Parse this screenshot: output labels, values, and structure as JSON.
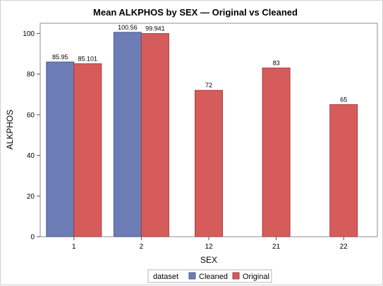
{
  "chart_data": {
    "type": "bar",
    "title": "Mean ALKPHOS by SEX — Original vs Cleaned",
    "xlabel": "SEX",
    "ylabel": "ALKPHOS",
    "ylim": [
      0,
      105
    ],
    "yticks": [
      0,
      20,
      40,
      60,
      80,
      100
    ],
    "categories": [
      "1",
      "2",
      "12",
      "21",
      "22"
    ],
    "series": [
      {
        "name": "Cleaned",
        "color": "#6c7cb4",
        "values": [
          85.95,
          100.56,
          null,
          null,
          null
        ],
        "labels": [
          "85.95",
          "100.56",
          null,
          null,
          null
        ]
      },
      {
        "name": "Original",
        "color": "#d65b5b",
        "values": [
          85.101,
          99.941,
          72,
          83,
          65
        ],
        "labels": [
          "85.101",
          "99.941",
          "72",
          "83",
          "65"
        ]
      }
    ],
    "grid": false,
    "legend": {
      "title": "dataset",
      "position": "bottom-center"
    }
  }
}
